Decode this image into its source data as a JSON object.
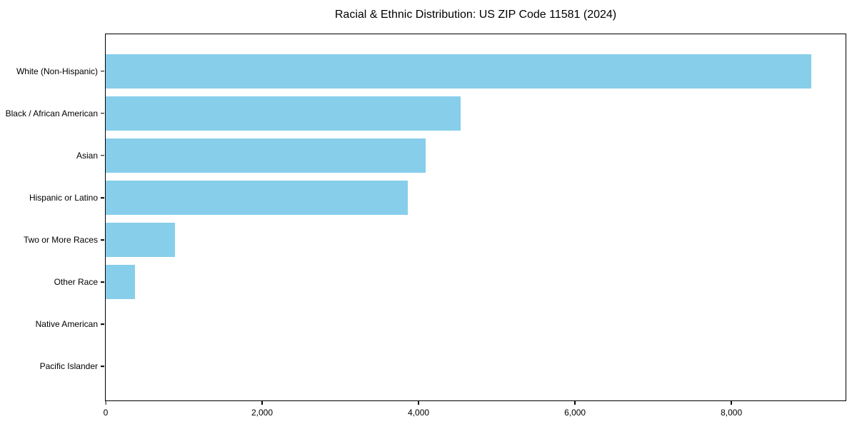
{
  "chart_data": {
    "type": "bar",
    "orientation": "horizontal",
    "title": "Racial & Ethnic Distribution: US ZIP Code 11581 (2024)",
    "xlabel": "",
    "ylabel": "",
    "categories": [
      "White (Non-Hispanic)",
      "Black / African American",
      "Asian",
      "Hispanic or Latino",
      "Two or More Races",
      "Other Race",
      "Native American",
      "Pacific Islander"
    ],
    "values": [
      9020,
      4540,
      4090,
      3860,
      890,
      375,
      0,
      0
    ],
    "xlim": [
      0,
      9460
    ],
    "x_ticks": [
      0,
      2000,
      4000,
      6000,
      8000
    ],
    "x_tick_labels": [
      "0",
      "2,000",
      "4,000",
      "6,000",
      "8,000"
    ],
    "bar_color": "#87CEEB",
    "axis_color": "#000000",
    "background_color": "#ffffff",
    "grid": false,
    "legend": null
  }
}
